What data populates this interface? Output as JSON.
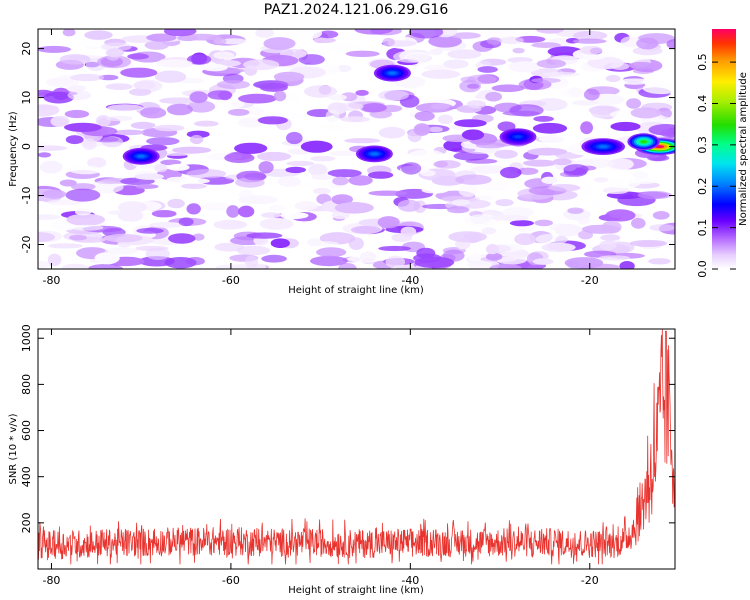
{
  "figure": {
    "title": "PAZ1.2024.121.06.29.G16"
  },
  "chart_data": [
    {
      "type": "heatmap",
      "name": "spectrogram",
      "xlabel": "Height of straight line (km)",
      "ylabel": "Frequency (Hz)",
      "xlim": [
        -81.5,
        -10.5
      ],
      "ylim": [
        -25,
        24
      ],
      "xticks": [
        -80,
        -60,
        -40,
        -20
      ],
      "yticks": [
        -20,
        -10,
        0,
        10,
        20
      ],
      "colorbar": {
        "label": "Normalized spectral amplitude",
        "range": [
          0.0,
          0.58
        ],
        "ticks": [
          0.0,
          0.1,
          0.2,
          0.3,
          0.4,
          0.5
        ],
        "colormap": "rainbow"
      },
      "features": [
        {
          "desc": "strongest signal",
          "x_range": [
            -14,
            -10.5
          ],
          "freq_hz": 0,
          "amplitude": 0.58
        },
        {
          "desc": "secondary peak",
          "x_range": [
            -15,
            -13
          ],
          "freq_hz": 1,
          "amplitude": 0.35
        },
        {
          "desc": "weak peak",
          "x_range": [
            -20,
            -17
          ],
          "freq_hz": 0,
          "amplitude": 0.2
        },
        {
          "desc": "weak peak",
          "x": -42,
          "freq_hz": 15,
          "amplitude": 0.2
        },
        {
          "desc": "weak peak",
          "x": -44,
          "freq_hz": -1.5,
          "amplitude": 0.2
        },
        {
          "desc": "weak peak",
          "x": -70,
          "freq_hz": -2,
          "amplitude": 0.2
        },
        {
          "desc": "weak peak",
          "x": -28,
          "freq_hz": 2,
          "amplitude": 0.18
        }
      ],
      "background_amplitude_range": [
        0.0,
        0.1
      ]
    },
    {
      "type": "line",
      "name": "snr",
      "xlabel": "Height of straight line (km)",
      "ylabel": "SNR (10 * v/v)",
      "xlim": [
        -81.5,
        -10.5
      ],
      "ylim": [
        0,
        1040
      ],
      "xticks": [
        -80,
        -60,
        -40,
        -20
      ],
      "yticks": [
        200,
        400,
        600,
        800,
        1000
      ],
      "color": "#e8332e",
      "series": [
        {
          "x": [
            -81.5,
            -80,
            -75,
            -70,
            -65,
            -60,
            -55,
            -50,
            -45,
            -40,
            -35,
            -30,
            -25,
            -20,
            -17,
            -16,
            -15,
            -14,
            -13,
            -12.5,
            -12,
            -11.5,
            -11,
            -10.5
          ],
          "values": [
            110,
            105,
            110,
            115,
            120,
            120,
            115,
            115,
            110,
            115,
            115,
            115,
            115,
            110,
            110,
            130,
            180,
            300,
            450,
            550,
            700,
            760,
            600,
            400
          ],
          "noise_envelope": [
            20,
            290
          ],
          "peak": {
            "x": -11.5,
            "y": 1030
          }
        }
      ]
    }
  ]
}
